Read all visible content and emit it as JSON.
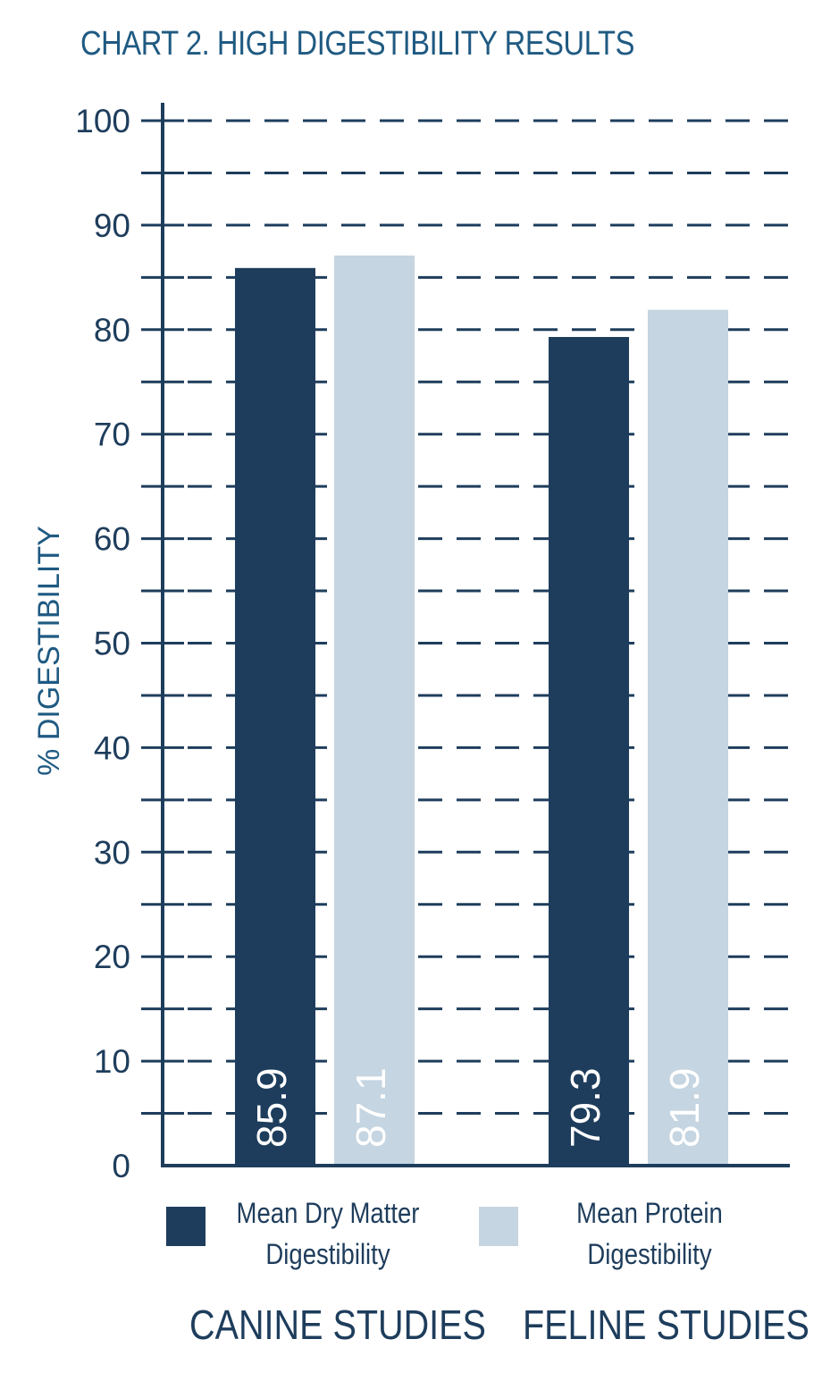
{
  "chart_data": {
    "type": "bar",
    "title": "CHART 2. HIGH DIGESTIBILITY RESULTS",
    "ylabel": "% DIGESTIBILITY",
    "xlabel": "",
    "categories": [
      "CANINE STUDIES",
      "FELINE STUDIES"
    ],
    "series": [
      {
        "name": "Mean Dry Matter Digestibility",
        "values": [
          85.9,
          79.3
        ],
        "labels": [
          "85.9",
          "79.3"
        ],
        "color": "#1e3d5c"
      },
      {
        "name": "Mean Protein Digestibility",
        "values": [
          87.1,
          81.9
        ],
        "labels": [
          "87.1",
          "81.9"
        ],
        "color": "#c5d5e1"
      }
    ],
    "ylim": [
      0,
      100
    ],
    "yticks": [
      "0",
      "10",
      "20",
      "30",
      "40",
      "50",
      "60",
      "70",
      "80",
      "90",
      "100"
    ],
    "grid": "dashed lines every 5 units",
    "axis_color": "#1e3d5c",
    "title_color": "#1f5a82",
    "legend_position": "bottom"
  },
  "legend": {
    "dry_matter_line1": "Mean Dry Matter",
    "dry_matter_line2": "Digestibility",
    "protein_line1": "Mean Protein",
    "protein_line2": "Digestibility"
  }
}
